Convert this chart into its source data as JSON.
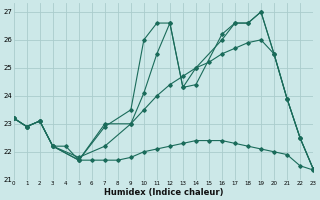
{
  "xlabel": "Humidex (Indice chaleur)",
  "xlim": [
    0,
    23
  ],
  "ylim": [
    21,
    27.3
  ],
  "yticks": [
    21,
    22,
    23,
    24,
    25,
    26,
    27
  ],
  "xticks": [
    0,
    1,
    2,
    3,
    4,
    5,
    6,
    7,
    8,
    9,
    10,
    11,
    12,
    13,
    14,
    15,
    16,
    17,
    18,
    19,
    20,
    21,
    22,
    23
  ],
  "bg_color": "#cce8e8",
  "grid_color": "#aacccc",
  "line_color": "#1a6b5a",
  "line1_x": [
    0,
    1,
    2,
    3,
    5,
    7,
    9,
    10,
    11,
    12,
    13,
    14,
    16,
    17,
    18,
    19,
    20,
    21,
    22,
    23
  ],
  "line1_y": [
    23.2,
    22.9,
    23.1,
    22.2,
    21.7,
    23.0,
    23.0,
    24.1,
    25.5,
    26.6,
    24.3,
    24.4,
    26.2,
    26.6,
    26.6,
    27.0,
    25.5,
    23.9,
    22.5,
    21.4
  ],
  "line2_x": [
    0,
    1,
    2,
    3,
    5,
    7,
    9,
    10,
    11,
    12,
    13,
    14,
    16,
    17,
    18,
    19,
    20,
    21,
    22,
    23
  ],
  "line2_y": [
    23.2,
    22.9,
    23.1,
    22.2,
    21.7,
    22.9,
    23.5,
    26.0,
    26.6,
    26.6,
    24.3,
    25.0,
    26.0,
    26.6,
    26.6,
    27.0,
    25.5,
    23.9,
    22.5,
    21.4
  ],
  "line3_x": [
    0,
    1,
    2,
    3,
    5,
    7,
    9,
    10,
    11,
    12,
    13,
    14,
    15,
    16,
    17,
    18,
    19,
    20,
    21,
    22,
    23
  ],
  "line3_y": [
    23.2,
    22.9,
    23.1,
    22.2,
    21.8,
    22.2,
    23.0,
    23.5,
    24.0,
    24.4,
    24.7,
    25.0,
    25.2,
    25.5,
    25.7,
    25.9,
    26.0,
    25.5,
    23.9,
    22.5,
    21.4
  ],
  "line4_x": [
    0,
    1,
    2,
    3,
    4,
    5,
    6,
    7,
    8,
    9,
    10,
    11,
    12,
    13,
    14,
    15,
    16,
    17,
    18,
    19,
    20,
    21,
    22,
    23
  ],
  "line4_y": [
    23.2,
    22.9,
    23.1,
    22.2,
    22.2,
    21.7,
    21.7,
    21.7,
    21.7,
    21.8,
    22.0,
    22.1,
    22.2,
    22.3,
    22.4,
    22.4,
    22.4,
    22.3,
    22.2,
    22.1,
    22.0,
    21.9,
    21.5,
    21.35
  ]
}
